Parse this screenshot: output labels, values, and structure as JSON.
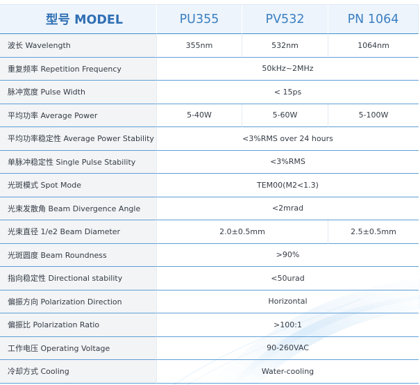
{
  "header": {
    "model_label": "型号 MODEL",
    "models": [
      "PU355",
      "PV532",
      "PN 1064"
    ]
  },
  "rows": [
    {
      "label": "波长 Wavelength",
      "values": [
        "355nm",
        "532nm",
        "1064nm"
      ]
    },
    {
      "label": "重复频率 Repetition Frequency",
      "values": [
        "50kHz~2MHz"
      ]
    },
    {
      "label": "脉冲宽度 Pulse Width",
      "values": [
        "< 15ps"
      ]
    },
    {
      "label": "平均功率 Average Power",
      "values": [
        "5-40W",
        "5-60W",
        "5-100W"
      ]
    },
    {
      "label": "平均功率稳定性 Average Power Stability",
      "values": [
        "<3%RMS over 24 hours"
      ]
    },
    {
      "label": "单脉冲稳定性 Single Pulse Stability",
      "values": [
        "<3%RMS"
      ]
    },
    {
      "label": "光斑模式 Spot Mode",
      "values": [
        "TEM00(M2<1.3)"
      ]
    },
    {
      "label": "光束发散角 Beam Divergence Angle",
      "values": [
        "<2mrad"
      ]
    },
    {
      "label": "光束直径 1/e2 Beam Diameter",
      "values": [
        "2.0±0.5mm",
        "2.5±0.5mm"
      ]
    },
    {
      "label": "光斑圆度 Beam Roundness",
      "values": [
        ">90%"
      ]
    },
    {
      "label": "指向稳定性 Directional stability",
      "values": [
        "<50urad"
      ]
    },
    {
      "label": "偏振方向 Polarization Direction",
      "values": [
        "Horizontal"
      ]
    },
    {
      "label": "偏振比 Polarization Ratio",
      "values": [
        ">100:1"
      ]
    },
    {
      "label": "工作电压 Operating Voltage",
      "values": [
        "90-260VAC"
      ]
    },
    {
      "label": "冷却方式 Cooling",
      "values": [
        "Water-cooling"
      ]
    }
  ],
  "colors": {
    "accent": "#3a7fc0",
    "row_line": "#5e9fd6",
    "label_bg": "#f3f4f6",
    "header_bg": "#eaf2fb"
  }
}
